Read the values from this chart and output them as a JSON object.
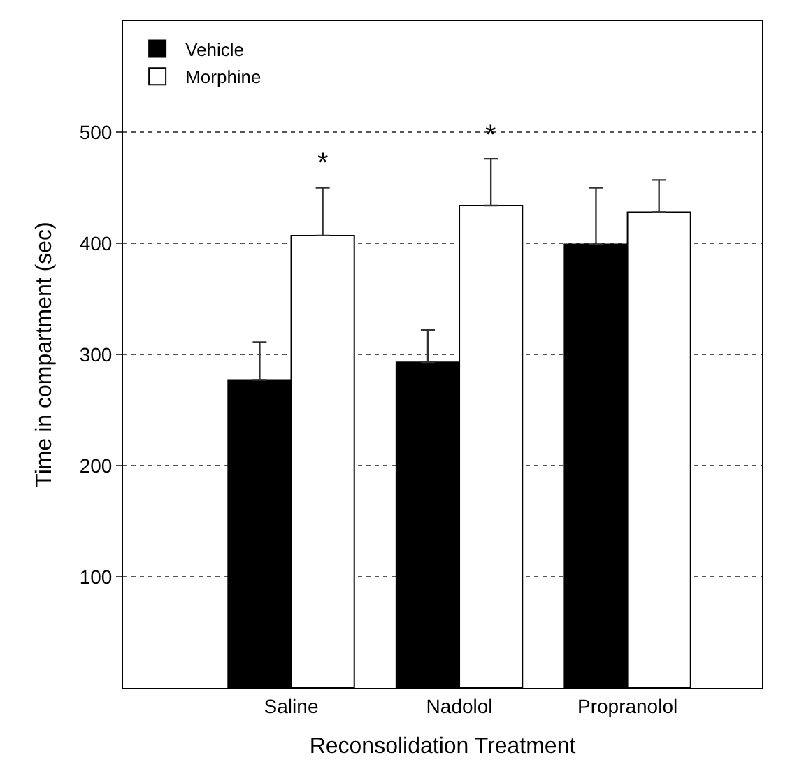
{
  "chart_data": {
    "type": "bar",
    "xlabel": "Reconsolidation Treatment",
    "ylabel": "Time in compartment (sec)",
    "categories": [
      "Saline",
      "Nadolol",
      "Propranolol"
    ],
    "series": [
      {
        "name": "Vehicle",
        "color": "#000000",
        "values": [
          277,
          293,
          399
        ],
        "errors": [
          [
            277,
            311
          ],
          [
            293,
            322
          ],
          [
            399,
            450
          ]
        ]
      },
      {
        "name": "Morphine",
        "color": "#ffffff",
        "values": [
          407,
          434,
          428
        ],
        "errors": [
          [
            407,
            450
          ],
          [
            434,
            476
          ],
          [
            428,
            457
          ]
        ]
      }
    ],
    "ylim": [
      0,
      600
    ],
    "yticks": [
      100,
      200,
      300,
      400,
      500
    ],
    "grid": "y",
    "legend": "top left",
    "annotations": [
      "*",
      "*"
    ]
  }
}
